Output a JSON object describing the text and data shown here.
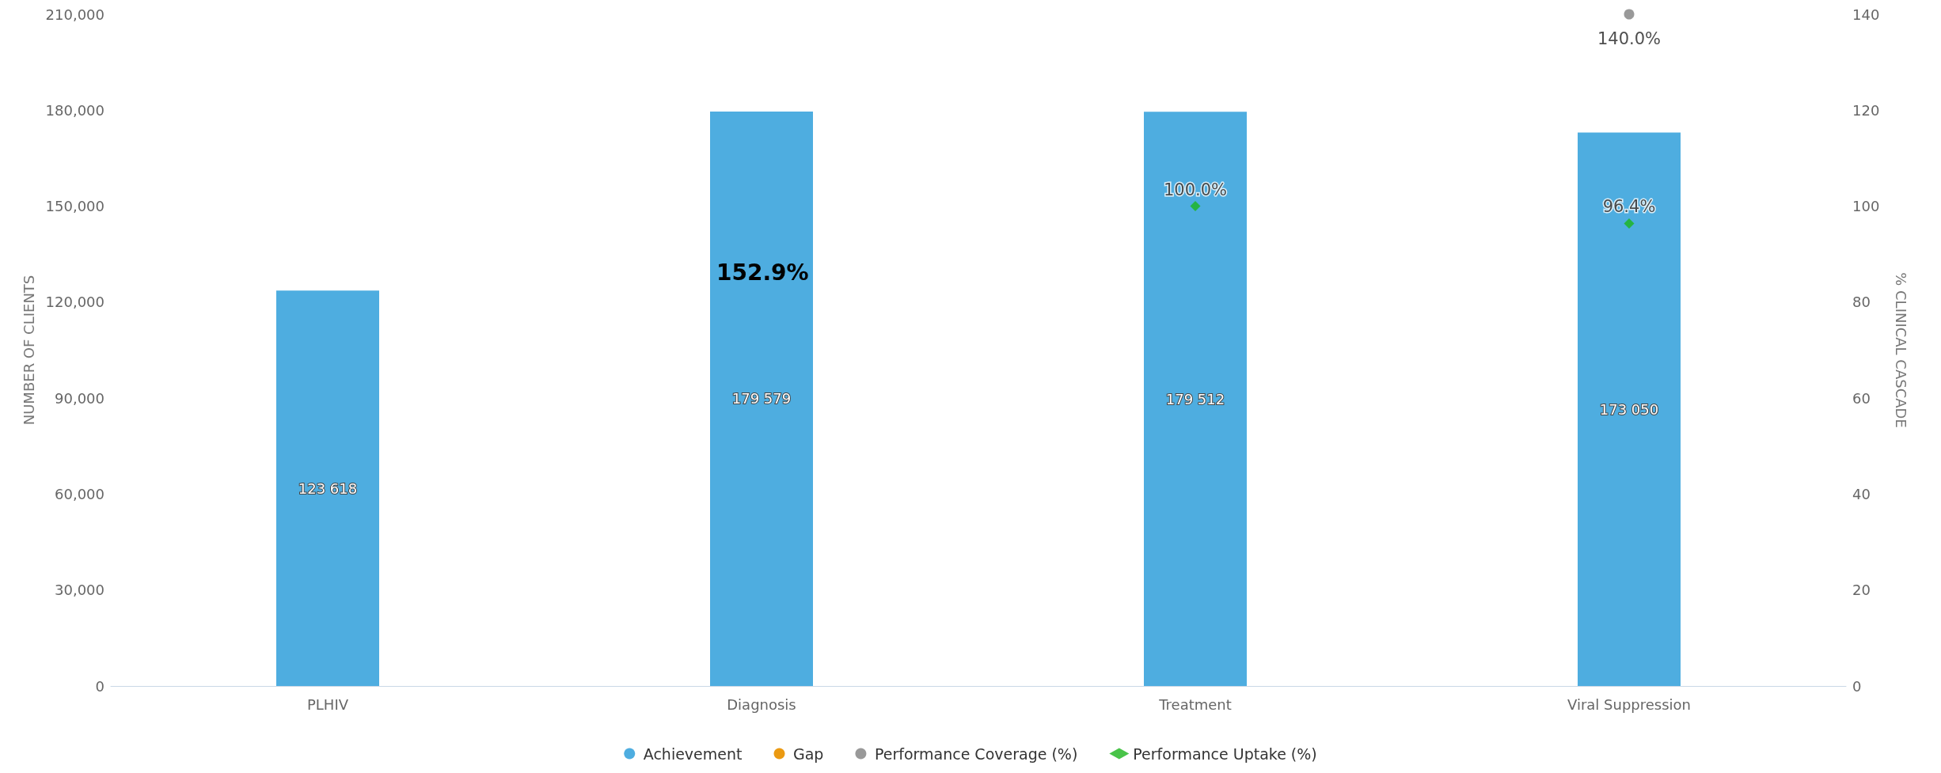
{
  "chart_data": {
    "type": "bar",
    "categories": [
      "PLHIV",
      "Diagnosis",
      "Treatment",
      "Viral Suppression"
    ],
    "ylabel": "NUMBER OF CLIENTS",
    "y2label": "% CLINICAL CASCADE",
    "ylim": [
      0,
      210000
    ],
    "yticks": [
      0,
      {
        "value": 30000,
        "label": "30,000"
      },
      {
        "value": 60000,
        "label": "60,000"
      },
      {
        "value": 90000,
        "label": "90,000"
      },
      {
        "value": 120000,
        "label": "120,000"
      },
      {
        "value": 150000,
        "label": "150,000"
      },
      {
        "value": 180000,
        "label": "180,000"
      },
      {
        "value": 210000,
        "label": "210,000"
      }
    ],
    "y2lim": [
      0,
      140
    ],
    "y2ticks": [
      0,
      20,
      40,
      60,
      80,
      100,
      120,
      140
    ],
    "stacked": true,
    "grid": false,
    "legend": "bottom",
    "series": [
      {
        "name": "Achievement",
        "color": "#4eade0",
        "values": [
          123618,
          179579,
          179512,
          173050
        ],
        "value_labels": [
          "123 618",
          "179 579",
          "179 512",
          "173 050"
        ]
      },
      {
        "name": "Gap",
        "color": "#eb9a12",
        "values": [
          null,
          null,
          null,
          null
        ]
      },
      {
        "name": "Performance Coverage (%)",
        "type": "scatter",
        "axis": "y2",
        "marker": "circle",
        "color": "#7f7f7f",
        "values": [
          null,
          null,
          null,
          140
        ],
        "value_labels": [
          null,
          null,
          null,
          "140.0%"
        ]
      },
      {
        "name": "Performance Uptake (%)",
        "type": "scatter",
        "axis": "y2",
        "marker": "diamond",
        "color": "#1bb51b",
        "values": [
          null,
          null,
          100,
          96.4
        ],
        "value_labels": [
          null,
          null,
          "100.0%",
          "96.4%"
        ]
      }
    ],
    "annotations": [
      "152.9%"
    ]
  }
}
